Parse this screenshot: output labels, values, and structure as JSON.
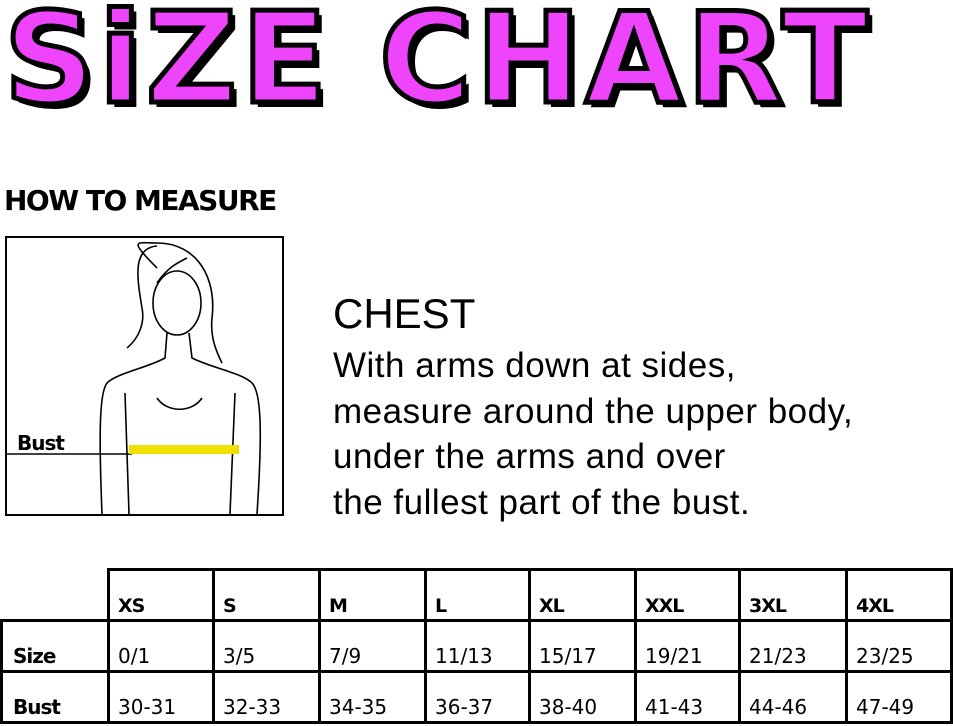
{
  "title": "SiZE CHART",
  "title_color": "#ee44fb",
  "how_to_measure": "HOW TO MEASURE",
  "figure": {
    "bust_label": "Bust",
    "tape_color": "#f0e000"
  },
  "chest": {
    "heading": "CHEST",
    "lines": [
      "With arms down at sides,",
      "measure around the upper body,",
      "under the arms and over",
      "the fullest part of the bust."
    ]
  },
  "table": {
    "sizes": [
      "XS",
      "S",
      "M",
      "L",
      "XL",
      "XXL",
      "3XL",
      "4XL"
    ],
    "rows": [
      {
        "label": "Size",
        "values": [
          "0/1",
          "3/5",
          "7/9",
          "11/13",
          "15/17",
          "19/21",
          "21/23",
          "23/25"
        ]
      },
      {
        "label": "Bust",
        "values": [
          "30-31",
          "32-33",
          "34-35",
          "36-37",
          "38-40",
          "41-43",
          "44-46",
          "47-49"
        ]
      }
    ]
  }
}
